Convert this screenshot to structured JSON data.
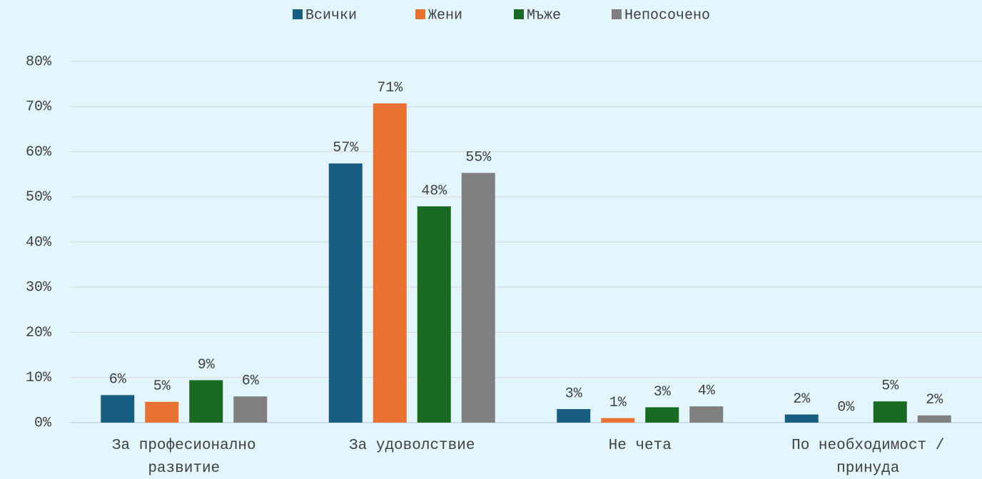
{
  "chart_data": {
    "type": "bar",
    "categories": [
      "За професионално развитие",
      "За удоволствие",
      "Не чета",
      "По необходимост / принуда"
    ],
    "series": [
      {
        "name": "Всички",
        "color": "#175e82",
        "values": [
          6.1,
          57.4,
          3.0,
          1.8
        ],
        "value_labels": [
          "6%",
          "57%",
          "3%",
          "2%"
        ]
      },
      {
        "name": "Жени",
        "color": "#e97132",
        "values": [
          4.6,
          70.7,
          1.0,
          0
        ],
        "value_labels": [
          "5%",
          "71%",
          "1%",
          "0%"
        ]
      },
      {
        "name": "Мъже",
        "color": "#196b24",
        "values": [
          9.4,
          47.9,
          3.4,
          4.7
        ],
        "value_labels": [
          "9%",
          "48%",
          "3%",
          "5%"
        ]
      },
      {
        "name": "Непосочено",
        "color": "#808080",
        "values": [
          5.8,
          55.3,
          3.6,
          1.6
        ],
        "value_labels": [
          "6%",
          "55%",
          "4%",
          "2%"
        ]
      }
    ],
    "ylim": [
      0,
      80
    ],
    "yticks": [
      {
        "value": 0,
        "label": "0%"
      },
      {
        "value": 10,
        "label": "10%"
      },
      {
        "value": 20,
        "label": "20%"
      },
      {
        "value": 30,
        "label": "30%"
      },
      {
        "value": 40,
        "label": "40%"
      },
      {
        "value": 50,
        "label": "50%"
      },
      {
        "value": 60,
        "label": "60%"
      },
      {
        "value": 70,
        "label": "70%"
      },
      {
        "value": 80,
        "label": "80%"
      }
    ],
    "grid": true,
    "legend": "top"
  }
}
